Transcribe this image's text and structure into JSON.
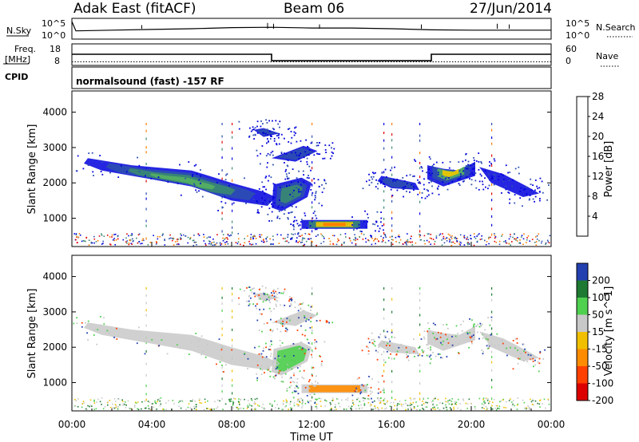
{
  "header": {
    "station": "Adak East (fitACF)",
    "beam": "Beam 06",
    "date": "27/Jun/2014"
  },
  "top_panels": {
    "nsky_label": "N.Sky",
    "nsky_ticks": [
      "10^5",
      "10^0"
    ],
    "nsearch_label": "N.Search",
    "nsearch_ticks": [
      "10^5",
      "10^0"
    ],
    "freq_label": "Freq.",
    "freq_unit": "[MHz]",
    "freq_ticks": [
      "18",
      "8"
    ],
    "nave_label": "Nave",
    "nave_ticks": [
      "60",
      "0"
    ],
    "cpid_label": "CPID",
    "cpid_text": "normalsound (fast) -157 RF"
  },
  "x_axis": {
    "label": "Time UT",
    "ticks": [
      "00:00",
      "04:00",
      "08:00",
      "12:00",
      "16:00",
      "20:00",
      "00:00"
    ]
  },
  "colors": {
    "power": [
      "#0000dd",
      "#2c4fb0",
      "#3a8a70",
      "#55b060",
      "#f0c800",
      "#ff7a00",
      "#e00000"
    ],
    "velocity": [
      "#2340b0",
      "#1e7a32",
      "#4fd04f",
      "#c8c8c8",
      "#f0c000",
      "#ff8c00",
      "#ff4000",
      "#dd0000"
    ]
  },
  "chart_data": [
    {
      "type": "line",
      "name": "N.Sky / N.Search",
      "xlabel": "Time UT",
      "ylabel": "N.Sky",
      "x": [
        0,
        0.2,
        2,
        4,
        6,
        8,
        10,
        12,
        14,
        16,
        18,
        20,
        24
      ],
      "y": [
        1,
        0.35,
        0.4,
        0.45,
        0.5,
        0.58,
        0.6,
        0.55,
        0.55,
        0.5,
        0.42,
        0.4,
        0.4
      ],
      "ylim": [
        0,
        1
      ]
    },
    {
      "type": "line",
      "xlabel": "Time UT",
      "ylabel": "Freq. [MHz]",
      "x": [
        0,
        10,
        10,
        18,
        18,
        24
      ],
      "y": [
        13.2,
        13.2,
        10.2,
        10.2,
        13.2,
        13.2
      ],
      "ylim": [
        8,
        18
      ],
      "nave": {
        "x": [
          0,
          24
        ],
        "y": [
          10,
          10
        ],
        "ylim": [
          0,
          60
        ]
      }
    },
    {
      "type": "heatmap",
      "xlabel": "Time UT",
      "ylabel": "Slant Range [km]",
      "xlim": [
        0,
        24
      ],
      "ylim": [
        200,
        4600
      ],
      "yticks": [
        1000,
        2000,
        3000,
        4000
      ],
      "colorbar": {
        "label": "Power [dB]",
        "ticks": [
          4,
          8,
          12,
          16,
          20,
          24,
          28
        ]
      }
    },
    {
      "type": "heatmap",
      "xlabel": "Time UT",
      "ylabel": "Slant Range [km]",
      "xlim": [
        0,
        24
      ],
      "ylim": [
        200,
        4600
      ],
      "yticks": [
        1000,
        2000,
        3000,
        4000
      ],
      "colorbar": {
        "label": "Velocity [m s^-1]",
        "ticks": [
          200,
          100,
          50,
          15,
          -15,
          -50,
          -100,
          -200
        ]
      }
    }
  ]
}
